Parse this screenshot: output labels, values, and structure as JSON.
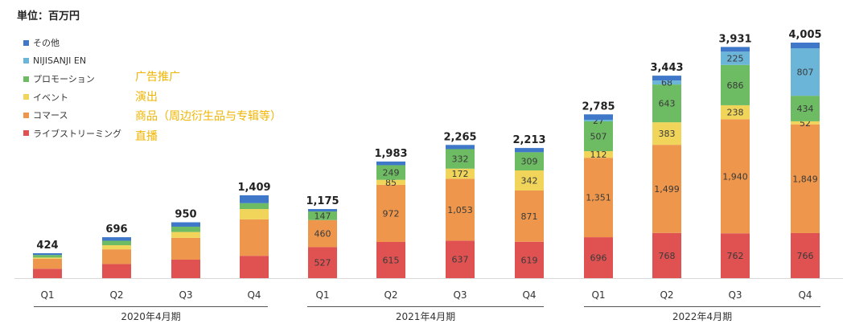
{
  "unit_label": "単位：百万円",
  "legend": [
    {
      "label": "その他",
      "color": "#3f78c8"
    },
    {
      "label": "NIJISANJI EN",
      "color": "#6ab5d8"
    },
    {
      "label": "プロモーション",
      "color": "#6dbb63"
    },
    {
      "label": "イベント",
      "color": "#f0d55a"
    },
    {
      "label": "コマース",
      "color": "#ee964b"
    },
    {
      "label": "ライブストリーミング",
      "color": "#e05252"
    }
  ],
  "annotations": [
    "广告推广",
    "演出",
    "商品（周边衍生品与专辑等）",
    "直播"
  ],
  "chart_data": {
    "type": "bar",
    "stacked": true,
    "categories": [
      "Q1",
      "Q2",
      "Q3",
      "Q4",
      "Q1",
      "Q2",
      "Q3",
      "Q4",
      "Q1",
      "Q2",
      "Q3",
      "Q4"
    ],
    "groups": [
      "2020年4月期",
      "2021年4月期",
      "2022年4月期"
    ],
    "totals": [
      424,
      696,
      950,
      1409,
      1175,
      1983,
      2265,
      2213,
      2785,
      3443,
      3931,
      4005
    ],
    "ylim": [
      0,
      4200
    ],
    "series": [
      {
        "name": "ライブストリーミング",
        "color": "#e05252",
        "values": [
          160,
          240,
          315,
          380,
          527,
          615,
          637,
          619,
          696,
          768,
          762,
          766
        ],
        "labels": [
          "",
          "",
          "",
          "",
          "527",
          "615",
          "637",
          "619",
          "696",
          "768",
          "762",
          "766"
        ]
      },
      {
        "name": "コマース",
        "color": "#ee964b",
        "values": [
          170,
          250,
          370,
          620,
          460,
          972,
          1053,
          871,
          1351,
          1499,
          1940,
          1849
        ],
        "labels": [
          "",
          "",
          "",
          "",
          "460",
          "972",
          "1,053",
          "871",
          "1,351",
          "1,499",
          "1,940",
          "1,849"
        ]
      },
      {
        "name": "イベント",
        "color": "#f0d55a",
        "values": [
          20,
          70,
          100,
          175,
          0,
          85,
          172,
          342,
          112,
          383,
          238,
          52
        ],
        "labels": [
          "",
          "",
          "",
          "",
          "",
          "85",
          "172",
          "342",
          "112",
          "383",
          "238",
          "52"
        ]
      },
      {
        "name": "プロモーション",
        "color": "#6dbb63",
        "values": [
          44,
          76,
          90,
          100,
          147,
          249,
          332,
          309,
          507,
          643,
          686,
          434
        ],
        "labels": [
          "",
          "",
          "",
          "",
          "147",
          "249",
          "332",
          "309",
          "507",
          "643",
          "686",
          "434"
        ]
      },
      {
        "name": "NIJISANJI EN",
        "color": "#6ab5d8",
        "values": [
          0,
          0,
          0,
          0,
          0,
          0,
          0,
          0,
          27,
          68,
          225,
          807
        ],
        "labels": [
          "",
          "",
          "",
          "",
          "",
          "",
          "",
          "",
          "27",
          "68",
          "225",
          "807"
        ]
      },
      {
        "name": "その他",
        "color": "#3f78c8",
        "values": [
          30,
          60,
          75,
          134,
          41,
          62,
          71,
          72,
          92,
          82,
          80,
          97
        ],
        "labels": [
          "",
          "",
          "",
          "",
          "",
          "",
          "",
          "",
          "",
          "",
          "",
          ""
        ]
      }
    ]
  }
}
